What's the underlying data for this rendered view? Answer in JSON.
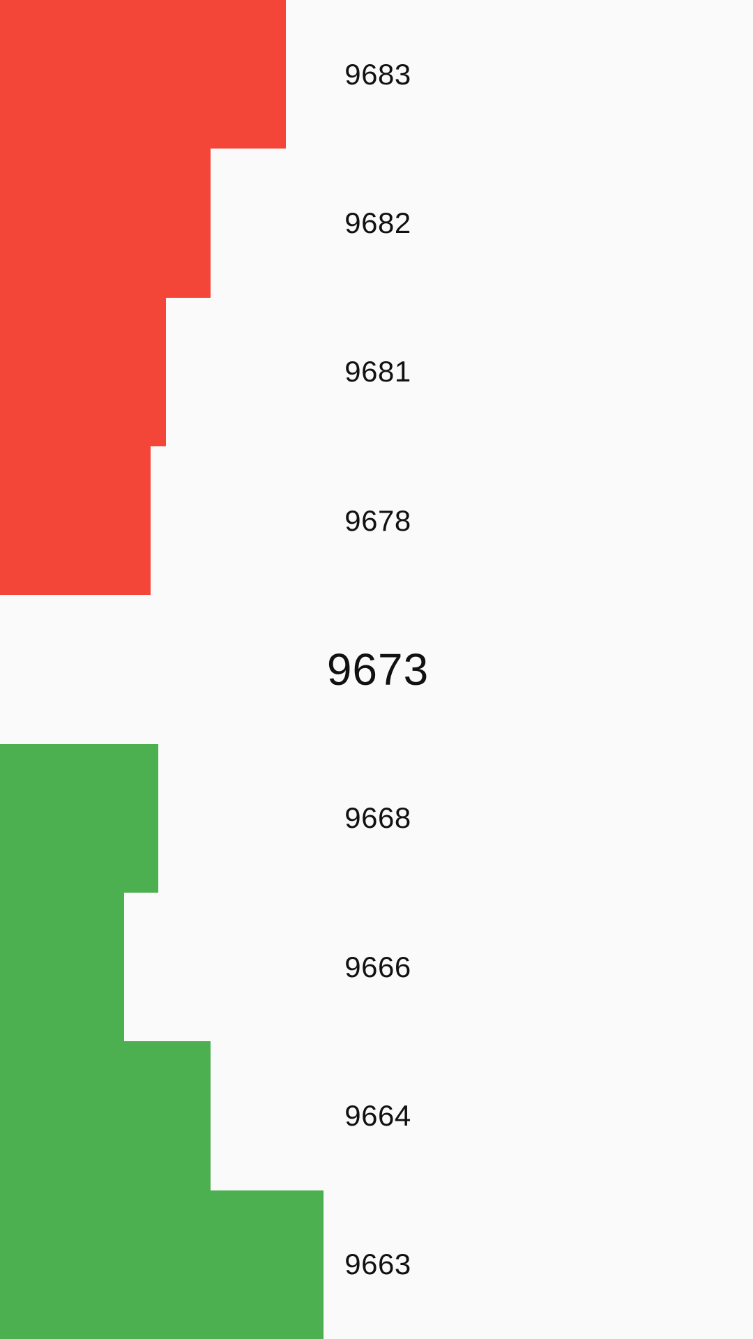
{
  "colors": {
    "background": "#FAFAFA",
    "ask": "#F44539",
    "bid": "#4CAF50",
    "text": "#111111"
  },
  "ladder": {
    "asks": [
      {
        "price": "9683",
        "level": 0.38
      },
      {
        "price": "9682",
        "level": 0.28
      },
      {
        "price": "9681",
        "level": 0.22
      },
      {
        "price": "9678",
        "level": 0.2
      }
    ],
    "current_price": "9673",
    "bids": [
      {
        "price": "9668",
        "level": 0.21
      },
      {
        "price": "9666",
        "level": 0.165
      },
      {
        "price": "9664",
        "level": 0.28
      },
      {
        "price": "9663",
        "level": 0.43
      }
    ]
  }
}
